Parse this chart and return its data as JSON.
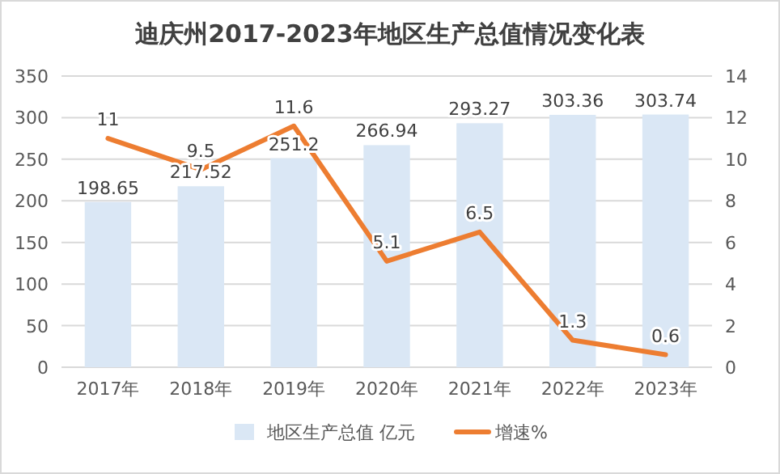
{
  "chart_data": {
    "type": "bar",
    "title": "迪庆州2017-2023年地区生产总值情况变化表",
    "categories": [
      "2017年",
      "2018年",
      "2019年",
      "2020年",
      "2021年",
      "2022年",
      "2023年"
    ],
    "series": [
      {
        "name": "地区生产总值 亿元",
        "color": "#dae7f5",
        "values": [
          198.65,
          217.52,
          251.2,
          266.94,
          293.27,
          303.36,
          303.74
        ]
      },
      {
        "name": "增速%",
        "type": "line",
        "axis": "y2",
        "color": "#ed7d31",
        "values": [
          11,
          9.5,
          11.6,
          5.1,
          6.5,
          1.3,
          0.6
        ]
      }
    ],
    "ylim": [
      0,
      350
    ],
    "yticks": [
      0,
      50,
      100,
      150,
      200,
      250,
      300,
      350
    ],
    "y2lim": [
      0,
      14
    ],
    "y2ticks": [
      0,
      2,
      4,
      6,
      8,
      10,
      12,
      14
    ],
    "grid": "y",
    "legend": "bottom",
    "data_labels": true
  }
}
